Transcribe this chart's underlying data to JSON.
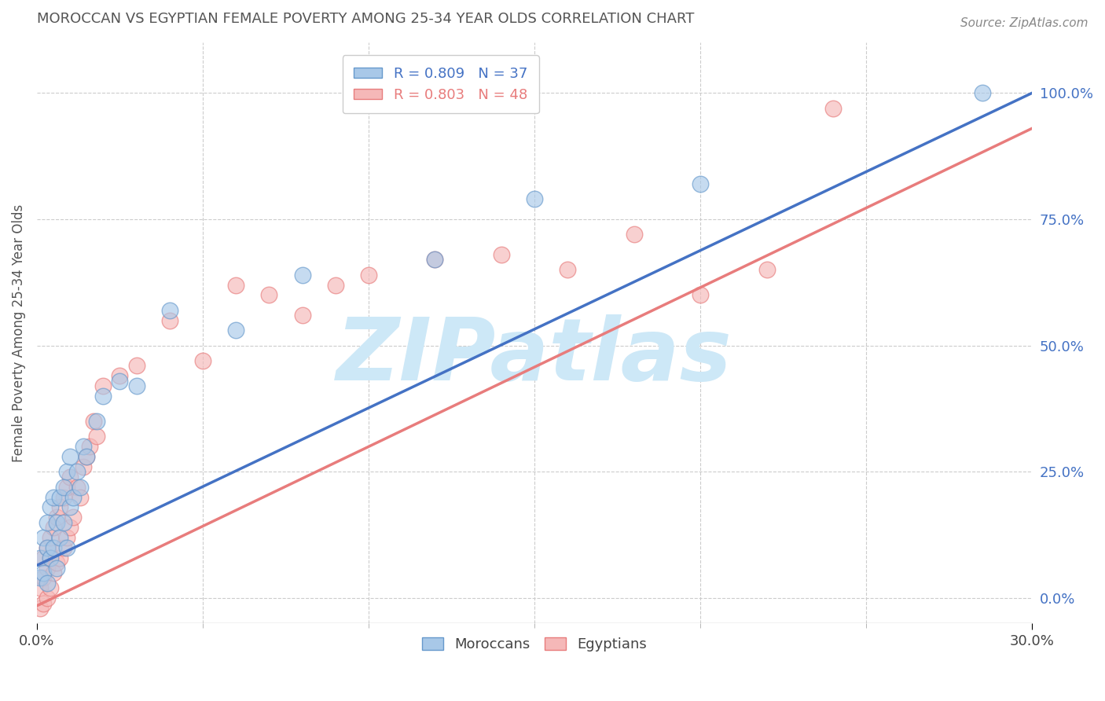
{
  "title": "MOROCCAN VS EGYPTIAN FEMALE POVERTY AMONG 25-34 YEAR OLDS CORRELATION CHART",
  "source": "Source: ZipAtlas.com",
  "ylabel": "Female Poverty Among 25-34 Year Olds",
  "xlim": [
    0.0,
    0.3
  ],
  "ylim": [
    -0.05,
    1.1
  ],
  "yticks_right": [
    0.0,
    0.25,
    0.5,
    0.75,
    1.0
  ],
  "yticklabels_right": [
    "0.0%",
    "25.0%",
    "50.0%",
    "75.0%",
    "100.0%"
  ],
  "moroccan_color_fill": "#a8c8e8",
  "moroccan_color_edge": "#6699cc",
  "egyptian_color_fill": "#f5b8b8",
  "egyptian_color_edge": "#e87c7c",
  "moroccan_line_color": "#4472c4",
  "egyptian_line_color": "#e87c7c",
  "moroccan_R": 0.809,
  "moroccan_N": 37,
  "egyptian_R": 0.803,
  "egyptian_N": 48,
  "moroccan_scatter_x": [
    0.001,
    0.001,
    0.002,
    0.002,
    0.003,
    0.003,
    0.003,
    0.004,
    0.004,
    0.005,
    0.005,
    0.006,
    0.006,
    0.007,
    0.007,
    0.008,
    0.008,
    0.009,
    0.009,
    0.01,
    0.01,
    0.011,
    0.012,
    0.013,
    0.014,
    0.015,
    0.018,
    0.02,
    0.025,
    0.03,
    0.04,
    0.06,
    0.08,
    0.12,
    0.15,
    0.2,
    0.285
  ],
  "moroccan_scatter_y": [
    0.04,
    0.08,
    0.05,
    0.12,
    0.03,
    0.1,
    0.15,
    0.08,
    0.18,
    0.1,
    0.2,
    0.06,
    0.15,
    0.12,
    0.2,
    0.15,
    0.22,
    0.1,
    0.25,
    0.18,
    0.28,
    0.2,
    0.25,
    0.22,
    0.3,
    0.28,
    0.35,
    0.4,
    0.43,
    0.42,
    0.57,
    0.53,
    0.64,
    0.67,
    0.79,
    0.82,
    1.0
  ],
  "egyptian_scatter_x": [
    0.001,
    0.001,
    0.002,
    0.002,
    0.002,
    0.003,
    0.003,
    0.003,
    0.004,
    0.004,
    0.004,
    0.005,
    0.005,
    0.006,
    0.006,
    0.007,
    0.007,
    0.008,
    0.008,
    0.009,
    0.009,
    0.01,
    0.01,
    0.011,
    0.012,
    0.013,
    0.014,
    0.015,
    0.016,
    0.017,
    0.018,
    0.02,
    0.025,
    0.03,
    0.04,
    0.05,
    0.06,
    0.07,
    0.08,
    0.09,
    0.1,
    0.12,
    0.14,
    0.16,
    0.18,
    0.2,
    0.22,
    0.24
  ],
  "egyptian_scatter_y": [
    -0.02,
    0.02,
    -0.01,
    0.04,
    0.08,
    0.0,
    0.06,
    0.1,
    0.02,
    0.08,
    0.12,
    0.05,
    0.14,
    0.07,
    0.16,
    0.08,
    0.18,
    0.1,
    0.2,
    0.12,
    0.22,
    0.14,
    0.24,
    0.16,
    0.22,
    0.2,
    0.26,
    0.28,
    0.3,
    0.35,
    0.32,
    0.42,
    0.44,
    0.46,
    0.55,
    0.47,
    0.62,
    0.6,
    0.56,
    0.62,
    0.64,
    0.67,
    0.68,
    0.65,
    0.72,
    0.6,
    0.65,
    0.97
  ],
  "moroccan_line_x0": 0.0,
  "moroccan_line_y0": 0.065,
  "moroccan_line_x1": 0.3,
  "moroccan_line_y1": 1.0,
  "egyptian_line_x0": 0.0,
  "egyptian_line_y0": -0.015,
  "egyptian_line_x1": 0.3,
  "egyptian_line_y1": 0.93,
  "background_color": "#ffffff",
  "grid_color": "#cccccc",
  "watermark": "ZIPatlas",
  "watermark_color": "#cde8f7",
  "title_color": "#555555",
  "axis_label_color": "#555555"
}
